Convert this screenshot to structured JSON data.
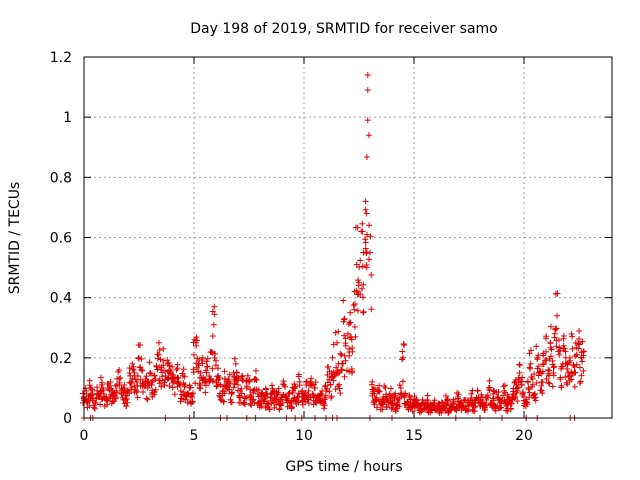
{
  "chart_data": {
    "type": "scatter",
    "title": "Day 198 of 2019, SRMTID for receiver samo",
    "xlabel": "GPS time / hours",
    "ylabel": "SRMTID / TECUs",
    "xlim": [
      0,
      24
    ],
    "ylim": [
      0,
      1.2
    ],
    "xticks": [
      0,
      5,
      10,
      15,
      20
    ],
    "xtick_labels": [
      "0",
      "5",
      "10",
      "15",
      "20"
    ],
    "yticks": [
      0,
      0.2,
      0.4,
      0.6,
      0.8,
      1,
      1.2
    ],
    "ytick_labels": [
      "0",
      "0.2",
      "0.4",
      "0.6",
      "0.8",
      "1",
      "1.2"
    ],
    "grid": true,
    "marker": "+",
    "marker_color": "#e00000",
    "series": [
      {
        "name": "SRMTID",
        "x": [
          0.0,
          0.1,
          0.2,
          0.3,
          0.4,
          0.5,
          0.6,
          0.7,
          0.8,
          0.9,
          1.0,
          1.1,
          1.2,
          1.3,
          1.4,
          1.5,
          1.6,
          1.7,
          1.8,
          1.9,
          2.0,
          2.1,
          2.2,
          2.3,
          2.4,
          2.5,
          2.6,
          2.7,
          2.8,
          2.9,
          3.0,
          3.1,
          3.2,
          3.3,
          3.4,
          3.5,
          3.6,
          3.7,
          3.8,
          3.9,
          4.0,
          4.1,
          4.2,
          4.3,
          4.4,
          4.5,
          4.6,
          4.7,
          4.8,
          4.9,
          5.0,
          5.1,
          5.2,
          5.3,
          5.4,
          5.5,
          5.6,
          5.7,
          5.8,
          5.9,
          6.0,
          6.1,
          6.2,
          6.3,
          6.4,
          6.5,
          6.6,
          6.7,
          6.8,
          6.9,
          7.0,
          7.1,
          7.2,
          7.3,
          7.4,
          7.5,
          7.6,
          7.7,
          7.8,
          7.9,
          8.0,
          8.1,
          8.2,
          8.3,
          8.4,
          8.5,
          8.6,
          8.7,
          8.8,
          8.9,
          9.0,
          9.1,
          9.2,
          9.3,
          9.4,
          9.5,
          9.6,
          9.7,
          9.8,
          9.9,
          10.0,
          10.1,
          10.2,
          10.3,
          10.4,
          10.5,
          10.6,
          10.7,
          10.8,
          10.9,
          11.0,
          11.1,
          11.2,
          11.3,
          11.4,
          11.5,
          11.6,
          11.7,
          11.8,
          11.9,
          12.0,
          12.1,
          12.2,
          12.3,
          12.4,
          12.5,
          12.6,
          12.7,
          12.8,
          12.85,
          12.9,
          12.9,
          12.9,
          12.95,
          13.0,
          13.1,
          13.2,
          13.3,
          13.4,
          13.5,
          13.6,
          13.7,
          13.8,
          13.9,
          14.0,
          14.1,
          14.2,
          14.3,
          14.4,
          14.5,
          14.6,
          14.7,
          14.8,
          14.9,
          15.0,
          15.1,
          15.2,
          15.3,
          15.4,
          15.5,
          15.6,
          15.7,
          15.8,
          15.9,
          16.0,
          16.1,
          16.2,
          16.3,
          16.4,
          16.5,
          16.6,
          16.7,
          16.8,
          16.9,
          17.0,
          17.1,
          17.2,
          17.3,
          17.4,
          17.5,
          17.6,
          17.7,
          17.8,
          17.9,
          18.0,
          18.1,
          18.2,
          18.3,
          18.4,
          18.5,
          18.6,
          18.7,
          18.8,
          18.9,
          19.0,
          19.1,
          19.2,
          19.3,
          19.4,
          19.5,
          19.6,
          19.7,
          19.8,
          19.9,
          20.0,
          20.1,
          20.2,
          20.3,
          20.4,
          20.5,
          20.6,
          20.7,
          20.8,
          20.9,
          21.0,
          21.1,
          21.2,
          21.3,
          21.4,
          21.5,
          21.6,
          21.7,
          21.8,
          21.9,
          22.0,
          22.1,
          22.2,
          22.3,
          22.4,
          22.5,
          22.6,
          22.7
        ],
        "y": [
          0.07,
          0.09,
          0.06,
          0.1,
          0.08,
          0.05,
          0.09,
          0.07,
          0.11,
          0.08,
          0.06,
          0.1,
          0.12,
          0.09,
          0.07,
          0.11,
          0.13,
          0.08,
          0.1,
          0.06,
          0.09,
          0.14,
          0.18,
          0.15,
          0.12,
          0.2,
          0.16,
          0.11,
          0.13,
          0.1,
          0.15,
          0.12,
          0.14,
          0.17,
          0.21,
          0.16,
          0.19,
          0.14,
          0.18,
          0.15,
          0.17,
          0.13,
          0.16,
          0.12,
          0.09,
          0.14,
          0.11,
          0.08,
          0.1,
          0.07,
          0.21,
          0.24,
          0.18,
          0.15,
          0.2,
          0.13,
          0.17,
          0.12,
          0.22,
          0.31,
          0.19,
          0.14,
          0.11,
          0.09,
          0.13,
          0.1,
          0.12,
          0.08,
          0.15,
          0.18,
          0.11,
          0.09,
          0.14,
          0.07,
          0.1,
          0.12,
          0.06,
          0.09,
          0.13,
          0.08,
          0.05,
          0.07,
          0.06,
          0.08,
          0.05,
          0.07,
          0.09,
          0.06,
          0.08,
          0.05,
          0.07,
          0.11,
          0.06,
          0.08,
          0.05,
          0.09,
          0.1,
          0.07,
          0.12,
          0.08,
          0.07,
          0.12,
          0.09,
          0.11,
          0.08,
          0.1,
          0.07,
          0.06,
          0.08,
          0.05,
          0.09,
          0.17,
          0.11,
          0.2,
          0.14,
          0.25,
          0.15,
          0.21,
          0.32,
          0.24,
          0.28,
          0.35,
          0.22,
          0.42,
          0.51,
          0.45,
          0.62,
          0.55,
          0.72,
          0.68,
          0.99,
          1.09,
          1.14,
          0.94,
          0.55,
          0.12,
          0.08,
          0.06,
          0.09,
          0.05,
          0.07,
          0.1,
          0.06,
          0.08,
          0.05,
          0.07,
          0.04,
          0.06,
          0.1,
          0.2,
          0.08,
          0.05,
          0.07,
          0.04,
          0.06,
          0.05,
          0.04,
          0.03,
          0.05,
          0.04,
          0.06,
          0.03,
          0.04,
          0.05,
          0.03,
          0.04,
          0.03,
          0.05,
          0.04,
          0.06,
          0.03,
          0.04,
          0.05,
          0.03,
          0.07,
          0.05,
          0.04,
          0.06,
          0.03,
          0.05,
          0.08,
          0.04,
          0.06,
          0.09,
          0.05,
          0.07,
          0.04,
          0.06,
          0.1,
          0.05,
          0.08,
          0.04,
          0.07,
          0.05,
          0.06,
          0.09,
          0.04,
          0.07,
          0.05,
          0.08,
          0.12,
          0.09,
          0.15,
          0.11,
          0.07,
          0.05,
          0.1,
          0.18,
          0.13,
          0.08,
          0.2,
          0.15,
          0.12,
          0.18,
          0.22,
          0.16,
          0.25,
          0.19,
          0.28,
          0.34,
          0.21,
          0.17,
          0.24,
          0.2,
          0.15,
          0.19,
          0.23,
          0.17,
          0.21,
          0.25,
          0.2,
          0.22
        ]
      }
    ],
    "zero_marks_x": [
      0.0,
      0.3,
      0.4,
      3.7,
      4.8,
      6.2,
      6.5,
      7.4,
      7.8,
      9.2,
      9.6,
      9.9,
      10.5,
      11.0,
      11.3,
      11.5,
      13.0,
      14.0,
      16.9,
      18.0,
      19.0,
      20.1,
      20.6,
      22.1,
      22.3
    ]
  }
}
